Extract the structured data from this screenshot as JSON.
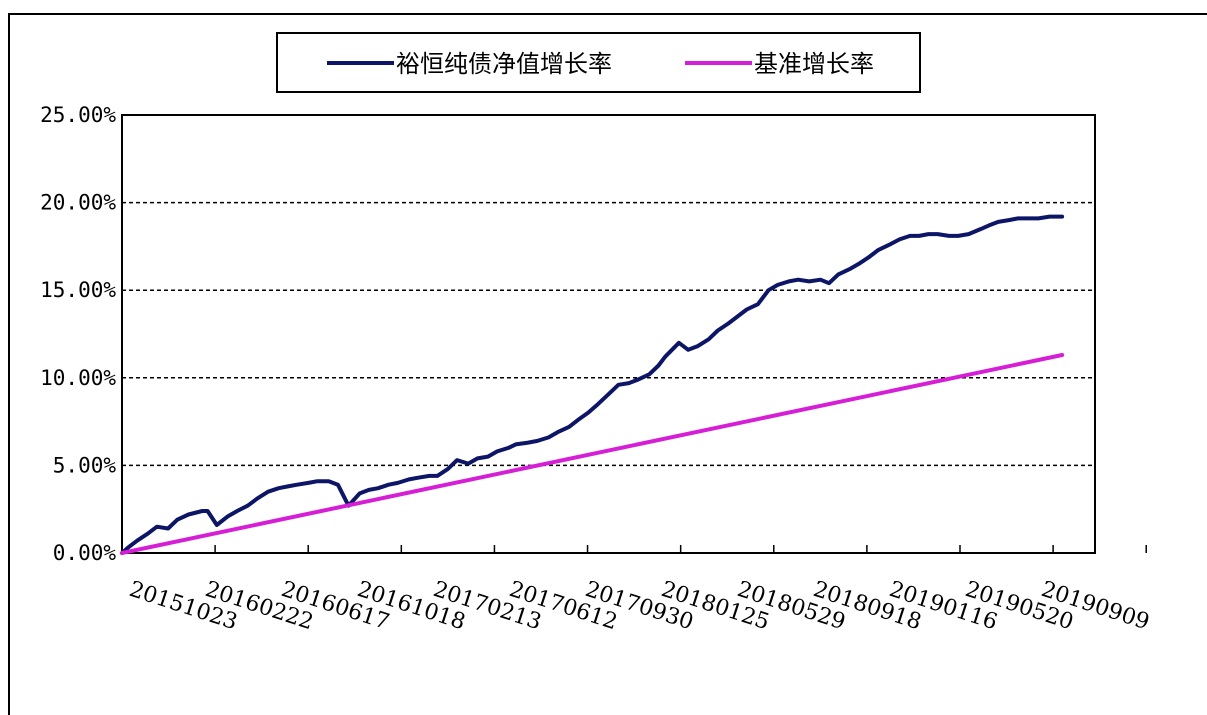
{
  "chart_data": {
    "type": "line",
    "x_format": "YYYYMMDD",
    "x_ticks": [
      "20151023",
      "20160222",
      "20160617",
      "20161018",
      "20170213",
      "20170612",
      "20170930",
      "20180125",
      "20180529",
      "20180918",
      "20190116",
      "20190520",
      "20190909"
    ],
    "y_ticks": [
      "0.00%",
      "5.00%",
      "10.00%",
      "15.00%",
      "20.00%",
      "25.00%"
    ],
    "ylim": [
      0,
      25
    ],
    "grid": "horizontal-dashed",
    "legend_position": "top",
    "series": [
      {
        "name": "裕恒纯债净值增长率",
        "color": "#0d1566",
        "x": [
          "20151023",
          "20151101",
          "20151115",
          "20151201",
          "20151215",
          "20160101",
          "20160115",
          "20160201",
          "20160222",
          "20160301",
          "20160315",
          "20160401",
          "20160415",
          "20160501",
          "20160515",
          "20160601",
          "20160617",
          "20160701",
          "20160715",
          "20160801",
          "20160815",
          "20160901",
          "20160915",
          "20161001",
          "20161018",
          "20161101",
          "20161115",
          "20161201",
          "20161215",
          "20170101",
          "20170115",
          "20170201",
          "20170213",
          "20170301",
          "20170315",
          "20170401",
          "20170415",
          "20170501",
          "20170515",
          "20170601",
          "20170612",
          "20170701",
          "20170715",
          "20170801",
          "20170815",
          "20170901",
          "20170915",
          "20170930",
          "20171015",
          "20171101",
          "20171115",
          "20171201",
          "20171215",
          "20180101",
          "20180115",
          "20180125",
          "20180215",
          "20180301",
          "20180315",
          "20180401",
          "20180415",
          "20180501",
          "20180515",
          "20180529",
          "20180615",
          "20180701",
          "20180715",
          "20180801",
          "20180815",
          "20180901",
          "20180918",
          "20181001",
          "20181015",
          "20181101",
          "20181115",
          "20181201",
          "20181215",
          "20190101",
          "20190116",
          "20190201",
          "20190215",
          "20190301",
          "20190315",
          "20190401",
          "20190415",
          "20190501",
          "20190520",
          "20190601",
          "20190615",
          "20190701",
          "20190715",
          "20190801",
          "20190815",
          "20190901",
          "20190909",
          "20190920"
        ],
        "values": [
          0.0,
          0.3,
          0.7,
          1.1,
          1.5,
          1.4,
          1.9,
          2.2,
          2.4,
          2.4,
          1.6,
          2.1,
          2.4,
          2.7,
          3.1,
          3.5,
          3.7,
          3.8,
          3.9,
          4.0,
          4.1,
          4.1,
          3.9,
          2.7,
          3.4,
          3.6,
          3.7,
          3.9,
          4.0,
          4.2,
          4.3,
          4.4,
          4.4,
          4.8,
          5.3,
          5.1,
          5.4,
          5.5,
          5.8,
          6.0,
          6.2,
          6.3,
          6.4,
          6.6,
          6.9,
          7.2,
          7.6,
          8.0,
          8.5,
          9.1,
          9.6,
          9.7,
          9.9,
          10.2,
          10.7,
          11.2,
          12.0,
          11.6,
          11.8,
          12.2,
          12.7,
          13.1,
          13.5,
          13.9,
          14.2,
          15.0,
          15.3,
          15.5,
          15.6,
          15.5,
          15.6,
          15.4,
          15.9,
          16.2,
          16.5,
          16.9,
          17.3,
          17.6,
          17.9,
          18.1,
          18.1,
          18.2,
          18.2,
          18.1,
          18.1,
          18.2,
          18.5,
          18.7,
          18.9,
          19.0,
          19.1,
          19.1,
          19.1,
          19.2,
          19.2,
          19.2
        ],
        "line_width": "thick"
      },
      {
        "name": "基准增长率",
        "color": "#d61ed6",
        "x": [
          "20151023",
          "20190920"
        ],
        "values": [
          0.0,
          11.3
        ],
        "line_width": "thick"
      }
    ]
  }
}
